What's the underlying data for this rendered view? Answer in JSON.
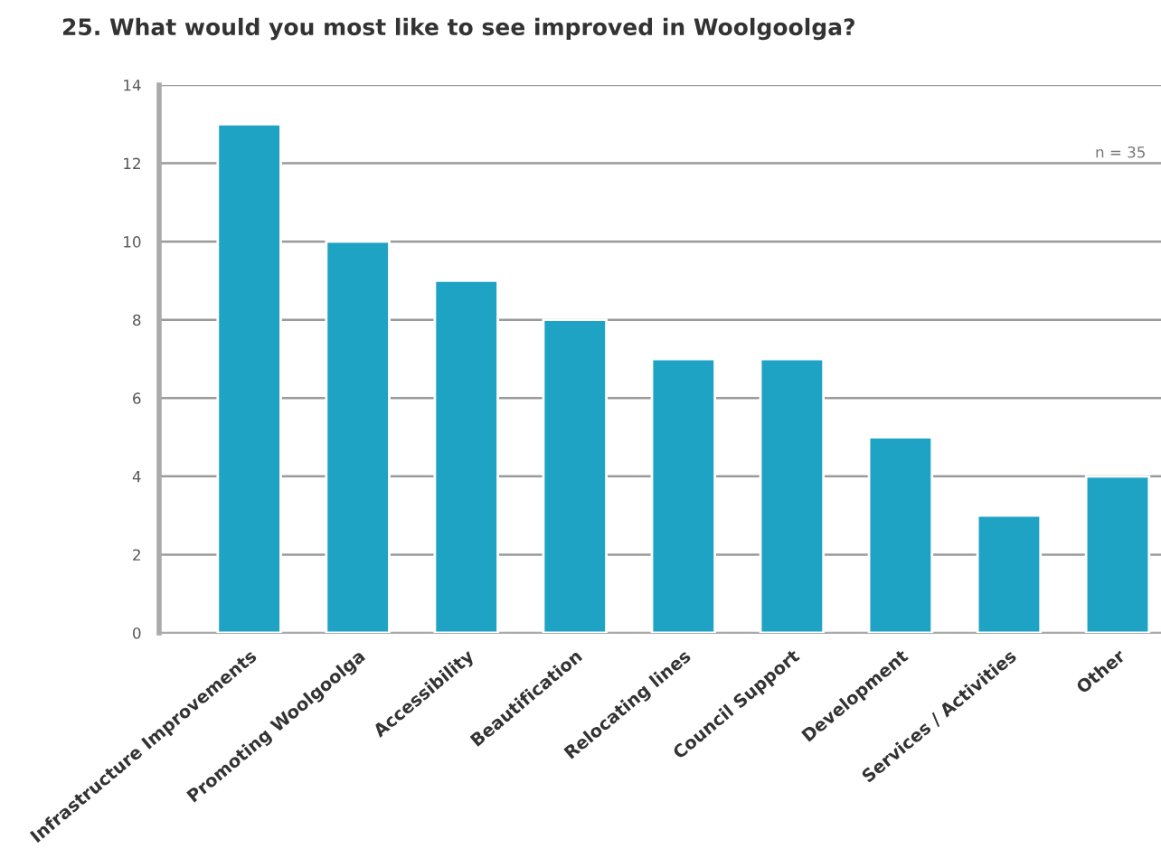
{
  "chart_data": {
    "type": "bar",
    "title": "25. What would you most like to see improved in Woolgoolga?",
    "categories": [
      "Infrastructure Improvements",
      "Promoting Woolgoolga",
      "Accessibility",
      "Beautification",
      "Relocating lines",
      "Council Support",
      "Development",
      "Services / Activities",
      "Other"
    ],
    "values": [
      13,
      10,
      9,
      8,
      7,
      7,
      5,
      3,
      4
    ],
    "color": "#1fa3c4",
    "ylim": [
      0,
      14
    ],
    "yticks": [
      0,
      2,
      4,
      6,
      8,
      10,
      12,
      14
    ],
    "grid": "y",
    "annotations": [
      "n = 35"
    ]
  }
}
